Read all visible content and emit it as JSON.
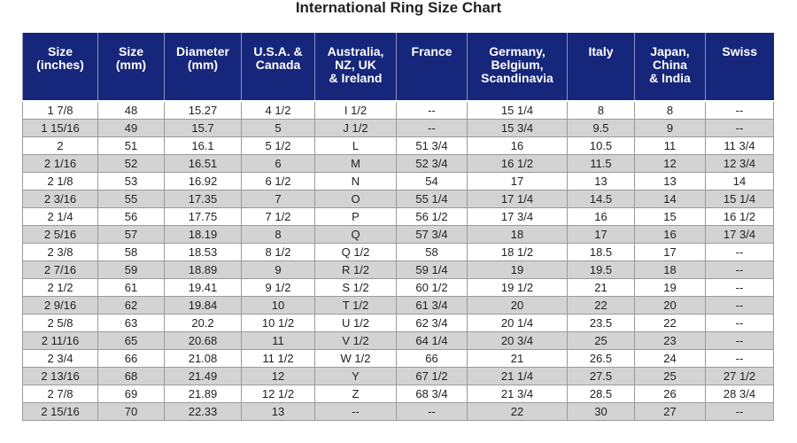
{
  "title": "International Ring Size Chart",
  "table": {
    "header": [
      "Size\n(inches)",
      "Size\n(mm)",
      "Diameter\n(mm)",
      "U.S.A. &\nCanada",
      "Australia,\nNZ, UK\n& Ireland",
      "France",
      "Germany,\nBelgium,\nScandinavia",
      "Italy",
      "Japan,\nChina\n& India",
      "Swiss"
    ],
    "rows": [
      [
        "1 7/8",
        "48",
        "15.27",
        "4 1/2",
        "I 1/2",
        "--",
        "15 1/4",
        "8",
        "8",
        "--"
      ],
      [
        "1 15/16",
        "49",
        "15.7",
        "5",
        "J 1/2",
        "--",
        "15 3/4",
        "9.5",
        "9",
        "--"
      ],
      [
        "2",
        "51",
        "16.1",
        "5 1/2",
        "L",
        "51 3/4",
        "16",
        "10.5",
        "11",
        "11 3/4"
      ],
      [
        "2 1/16",
        "52",
        "16.51",
        "6",
        "M",
        "52 3/4",
        "16 1/2",
        "11.5",
        "12",
        "12 3/4"
      ],
      [
        "2 1/8",
        "53",
        "16.92",
        "6 1/2",
        "N",
        "54",
        "17",
        "13",
        "13",
        "14"
      ],
      [
        "2 3/16",
        "55",
        "17.35",
        "7",
        "O",
        "55 1/4",
        "17 1/4",
        "14.5",
        "14",
        "15 1/4"
      ],
      [
        "2 1/4",
        "56",
        "17.75",
        "7 1/2",
        "P",
        "56 1/2",
        "17 3/4",
        "16",
        "15",
        "16 1/2"
      ],
      [
        "2 5/16",
        "57",
        "18.19",
        "8",
        "Q",
        "57 3/4",
        "18",
        "17",
        "16",
        "17 3/4"
      ],
      [
        "2 3/8",
        "58",
        "18.53",
        "8 1/2",
        "Q 1/2",
        "58",
        "18 1/2",
        "18.5",
        "17",
        "--"
      ],
      [
        "2 7/16",
        "59",
        "18.89",
        "9",
        "R 1/2",
        "59 1/4",
        "19",
        "19.5",
        "18",
        "--"
      ],
      [
        "2 1/2",
        "61",
        "19.41",
        "9 1/2",
        "S 1/2",
        "60 1/2",
        "19 1/2",
        "21",
        "19",
        "--"
      ],
      [
        "2 9/16",
        "62",
        "19.84",
        "10",
        "T 1/2",
        "61 3/4",
        "20",
        "22",
        "20",
        "--"
      ],
      [
        "2 5/8",
        "63",
        "20.2",
        "10 1/2",
        "U 1/2",
        "62 3/4",
        "20 1/4",
        "23.5",
        "22",
        "--"
      ],
      [
        "2 11/16",
        "65",
        "20.68",
        "11",
        "V 1/2",
        "64 1/4",
        "20 3/4",
        "25",
        "23",
        "--"
      ],
      [
        "2 3/4",
        "66",
        "21.08",
        "11 1/2",
        "W 1/2",
        "66",
        "21",
        "26.5",
        "24",
        "--"
      ],
      [
        "2 13/16",
        "68",
        "21.49",
        "12",
        "Y",
        "67 1/2",
        "21 1/4",
        "27.5",
        "25",
        "27 1/2"
      ],
      [
        "2 7/8",
        "69",
        "21.89",
        "12 1/2",
        "Z",
        "68 3/4",
        "21 3/4",
        "28.5",
        "26",
        "28 3/4"
      ],
      [
        "2 15/16",
        "70",
        "22.33",
        "13",
        "--",
        "--",
        "22",
        "30",
        "27",
        "--"
      ]
    ]
  }
}
